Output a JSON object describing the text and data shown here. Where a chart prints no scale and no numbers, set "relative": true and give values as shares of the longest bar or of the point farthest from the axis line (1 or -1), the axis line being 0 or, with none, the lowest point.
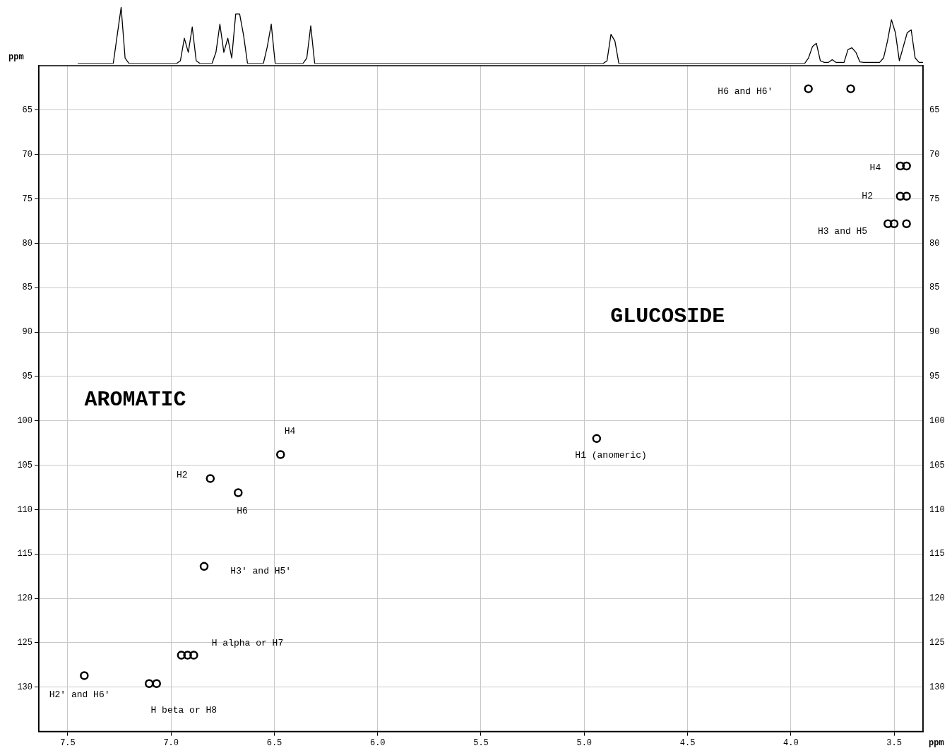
{
  "chart_data": [
    {
      "type": "line",
      "relative": true,
      "grid": false,
      "legend": false,
      "marker": "none",
      "categories": [
        null,
        null,
        null,
        null,
        null,
        null,
        null,
        null,
        null,
        null,
        null,
        null,
        null,
        null,
        null,
        null,
        null,
        null,
        null,
        null,
        null,
        null,
        null,
        null,
        null,
        null,
        null,
        null,
        null,
        null,
        null,
        null,
        null,
        null,
        null,
        null,
        null,
        null,
        null,
        null,
        null,
        null,
        null,
        null,
        null,
        null,
        null,
        null,
        null,
        null,
        null,
        null,
        null,
        null,
        null,
        null,
        null,
        null,
        null,
        null,
        null,
        null,
        null,
        null,
        null,
        null,
        null,
        null,
        null,
        null,
        null,
        null,
        null,
        null,
        null,
        null,
        null,
        null,
        null,
        null,
        null,
        null,
        null,
        null,
        null,
        null,
        null,
        null,
        null,
        null,
        null,
        null,
        null,
        null,
        null,
        null,
        null,
        null,
        null,
        null,
        null,
        null,
        null,
        null,
        null,
        null,
        null,
        null,
        null,
        null,
        null,
        null,
        null,
        null,
        null,
        null,
        null,
        null,
        null,
        null,
        null,
        null,
        null,
        null,
        null,
        null,
        null,
        null,
        null,
        null,
        null,
        null,
        null,
        null,
        null,
        null,
        null,
        null,
        null,
        null,
        null,
        null,
        null,
        null,
        null,
        null,
        null,
        null,
        null,
        null,
        null,
        null,
        null,
        null,
        null,
        null,
        null,
        null,
        null,
        null,
        null,
        null,
        null,
        null,
        null,
        null,
        null,
        null,
        null,
        null,
        null,
        null,
        null,
        null,
        null,
        null,
        null,
        null,
        null,
        null,
        null,
        null,
        null,
        null,
        null,
        null,
        null,
        null,
        null,
        null,
        null,
        null,
        null,
        null,
        null,
        null,
        null,
        null,
        null,
        null,
        null,
        null,
        null,
        null,
        null,
        null,
        null,
        null,
        null,
        null,
        null,
        null,
        null,
        null,
        null
      ],
      "series": [
        {
          "color": "#000000",
          "values": [
            0,
            0,
            0,
            0,
            0,
            0,
            0,
            0,
            0,
            0,
            0.5,
            1,
            0.1,
            0,
            0,
            0,
            0,
            0,
            0,
            0,
            0,
            0,
            0,
            0,
            0,
            0,
            0.05,
            0.45,
            0.2,
            0.65,
            0.05,
            0,
            0,
            0,
            0,
            0.2,
            0.7,
            0.2,
            0.45,
            0.1,
            0.88,
            0.88,
            0.5,
            0,
            0,
            0,
            0,
            0,
            0.3,
            0.7,
            0,
            0,
            0,
            0,
            0,
            0,
            0,
            0,
            0.1,
            0.67,
            0,
            0,
            0,
            0,
            0,
            0,
            0,
            0,
            0,
            0,
            0,
            0,
            0,
            0,
            0,
            0,
            0,
            0,
            0,
            0,
            0,
            0,
            0,
            0,
            0,
            0,
            0,
            0,
            0,
            0,
            0,
            0,
            0,
            0,
            0,
            0,
            0,
            0,
            0,
            0,
            0,
            0,
            0,
            0,
            0,
            0,
            0,
            0,
            0,
            0,
            0,
            0,
            0,
            0,
            0,
            0,
            0,
            0,
            0,
            0,
            0,
            0,
            0,
            0,
            0,
            0,
            0,
            0,
            0,
            0,
            0,
            0,
            0,
            0,
            0.05,
            0.52,
            0.4,
            0,
            0,
            0,
            0,
            0,
            0,
            0,
            0,
            0,
            0,
            0,
            0,
            0,
            0,
            0,
            0,
            0,
            0,
            0,
            0,
            0,
            0,
            0,
            0,
            0,
            0,
            0,
            0,
            0,
            0,
            0,
            0,
            0,
            0,
            0,
            0,
            0,
            0,
            0,
            0,
            0,
            0,
            0,
            0,
            0,
            0,
            0,
            0,
            0.1,
            0.3,
            0.36,
            0.05,
            0.02,
            0.02,
            0.07,
            0.02,
            0.02,
            0.02,
            0.25,
            0.28,
            0.2,
            0.03,
            0.02,
            0.02,
            0.02,
            0.02,
            0.02,
            0.1,
            0.4,
            0.78,
            0.55,
            0.05,
            0.3,
            0.55,
            0.6,
            0.1,
            0.02,
            0.02
          ]
        }
      ]
    },
    {
      "type": "scatter",
      "xlabel": "ppm",
      "ylabel": "ppm",
      "grid": true,
      "legend": false,
      "marker": "circle",
      "xlim": [
        7.64,
        3.36
      ],
      "xticks": [
        {
          "value": 7.5,
          "label": "7.5"
        },
        {
          "value": 7,
          "label": "7.0"
        },
        {
          "value": 6.5,
          "label": "6.5"
        },
        {
          "value": 6,
          "label": "6.0"
        },
        {
          "value": 5.5,
          "label": "5.5"
        },
        {
          "value": 5,
          "label": "5.0"
        },
        {
          "value": 4.5,
          "label": "4.5"
        },
        {
          "value": 4,
          "label": "4.0"
        },
        {
          "value": 3.5,
          "label": "3.5"
        }
      ],
      "ylim": [
        135,
        60
      ],
      "yticks": [
        65,
        70,
        75,
        80,
        85,
        90,
        95,
        100,
        105,
        110,
        115,
        120,
        125,
        130
      ],
      "y2lim": [
        135,
        60
      ],
      "y2ticks": [
        65,
        70,
        75,
        80,
        85,
        90,
        95,
        100,
        105,
        110,
        115,
        120,
        125,
        130
      ],
      "series": [
        {
          "color": "#000000",
          "x": [
            7.42,
            7.106,
            7.07,
            6.95,
            6.92,
            6.89,
            6.84,
            6.81,
            6.675,
            6.47,
            4.94,
            3.915,
            3.71,
            3.47,
            3.44,
            3.47,
            3.44,
            3.53,
            3.5,
            3.44
          ],
          "values": [
            128.7,
            129.6,
            129.6,
            126.4,
            126.4,
            126.4,
            116.4,
            106.5,
            108.1,
            103.8,
            102.0,
            62.6,
            62.6,
            71.3,
            71.3,
            74.7,
            74.7,
            77.8,
            77.8,
            77.8
          ]
        }
      ],
      "annotations": [
        "H6 and H6'",
        "H4",
        "H2",
        "H3 and H5",
        "GLUCOSIDE",
        "AROMATIC",
        "H4",
        "H1 (anomeric)",
        "H2",
        "H6",
        "H3' and H5'",
        "H alpha or H7",
        "H2' and H6'",
        "H beta or H8"
      ]
    }
  ]
}
